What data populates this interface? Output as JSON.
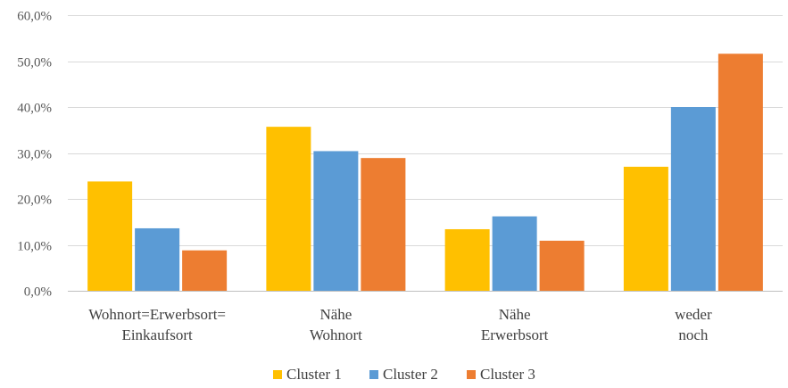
{
  "chart_data": {
    "type": "bar",
    "title": "",
    "xlabel": "",
    "ylabel": "",
    "ylim": [
      0,
      60
    ],
    "yticks": [
      "0,0%",
      "10,0%",
      "20,0%",
      "30,0%",
      "40,0%",
      "50,0%",
      "60,0%"
    ],
    "ytick_values": [
      0,
      10,
      20,
      30,
      40,
      50,
      60
    ],
    "categories": [
      [
        "Wohnort=Erwerbsort=",
        "Einkaufsort"
      ],
      [
        "Nähe",
        "Wohnort"
      ],
      [
        "Nähe",
        "Erwerbsort"
      ],
      [
        "weder",
        "noch"
      ]
    ],
    "series": [
      {
        "name": "Cluster 1",
        "color": "#FFC000",
        "values": [
          23.8,
          35.7,
          13.4,
          27.0
        ]
      },
      {
        "name": "Cluster 2",
        "color": "#5B9BD5",
        "values": [
          13.6,
          30.4,
          16.2,
          40.0
        ]
      },
      {
        "name": "Cluster 3",
        "color": "#ED7D31",
        "values": [
          8.8,
          28.9,
          10.9,
          51.6
        ]
      }
    ],
    "grid": true,
    "legend_position": "bottom-center"
  }
}
